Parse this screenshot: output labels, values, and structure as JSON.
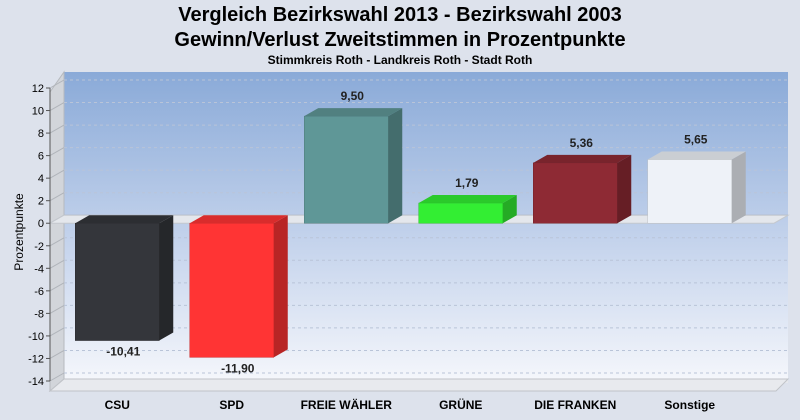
{
  "chart_data": {
    "type": "bar",
    "title": "Vergleich Bezirkswahl 2013 - Bezirkswahl 2003",
    "title_line2": "Gewinn/Verlust Zweitstimmen in Prozentpunkte",
    "subtitle": "Stimmkreis Roth - Landkreis Roth - Stadt Roth",
    "ylabel": "Prozentpunkte",
    "ylim": [
      -14,
      12
    ],
    "yticks": [
      12,
      10,
      8,
      6,
      4,
      2,
      0,
      -2,
      -4,
      -6,
      -8,
      -10,
      -12,
      -14
    ],
    "categories": [
      "CSU",
      "SPD",
      "FREIE WÄHLER",
      "GRÜNE",
      "DIE FRANKEN",
      "Sonstige"
    ],
    "values": [
      -10.41,
      -11.9,
      9.5,
      1.79,
      5.36,
      5.65
    ],
    "value_labels": [
      "-10,41",
      "-11,90",
      "9,50",
      "1,79",
      "5,36",
      "5,65"
    ],
    "colors": [
      "#34363b",
      "#ff3434",
      "#5f9797",
      "#33ee33",
      "#8e2a34",
      "#eef2f8"
    ],
    "grid": true,
    "legend": "none"
  }
}
